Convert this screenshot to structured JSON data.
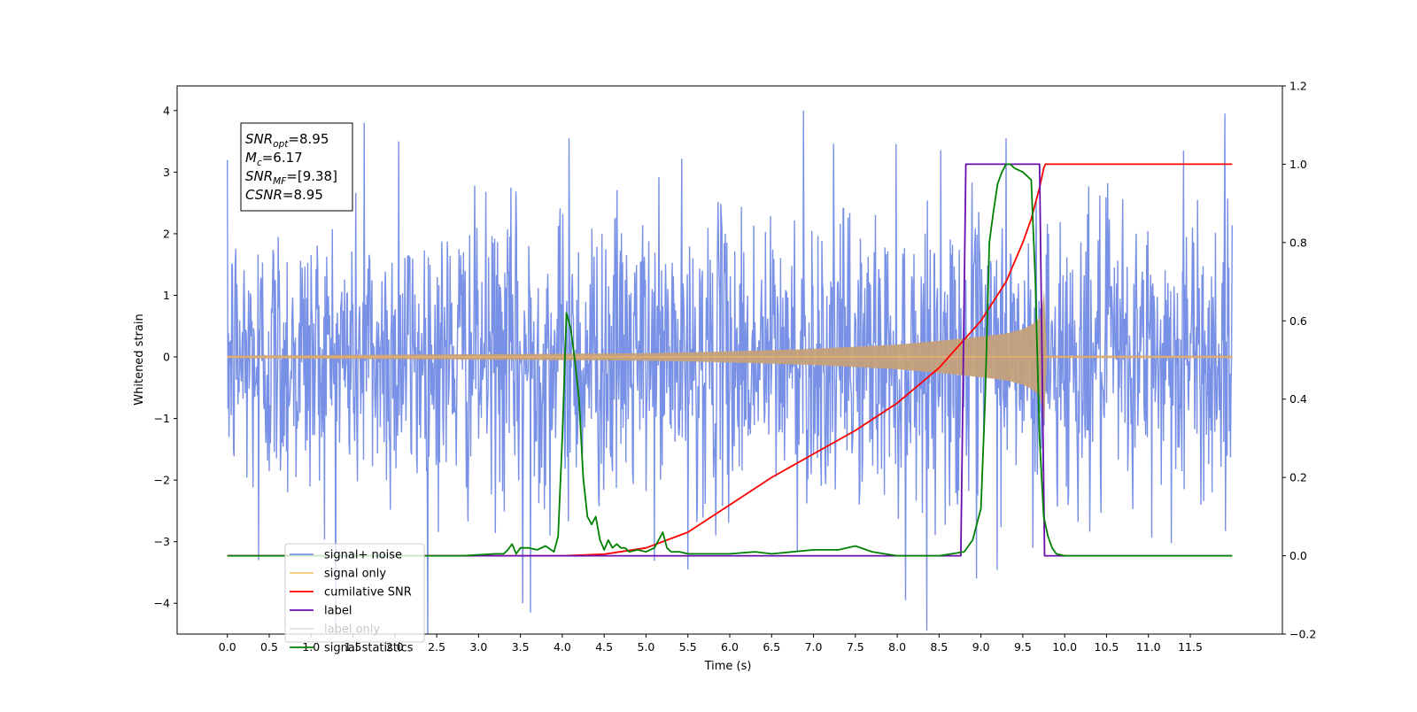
{
  "chart_data": {
    "type": "line",
    "title": "",
    "xlabel": "Time (s)",
    "ylabel": "Whitened strain",
    "y2label": "",
    "xlim": [
      -0.6,
      12.6
    ],
    "ylim": [
      -4.5,
      4.4
    ],
    "y2lim": [
      -0.2,
      1.2
    ],
    "x_ticks": [
      0.0,
      0.5,
      1.0,
      1.5,
      2.0,
      2.5,
      3.0,
      3.5,
      4.0,
      4.5,
      5.0,
      5.5,
      6.0,
      6.5,
      7.0,
      7.5,
      8.0,
      8.5,
      9.0,
      9.5,
      10.0,
      10.5,
      11.0,
      11.5
    ],
    "x_tick_labels": [
      "0.0",
      "0.5",
      "1.0",
      "1.5",
      "2.0",
      "2.5",
      "3.0",
      "3.5",
      "4.0",
      "4.5",
      "5.0",
      "5.5",
      "6.0",
      "6.5",
      "7.0",
      "7.5",
      "8.0",
      "8.5",
      "9.0",
      "9.5",
      "10.0",
      "10.5",
      "11.0",
      "11.5"
    ],
    "y_ticks": [
      -4,
      -3,
      -2,
      -1,
      0,
      1,
      2,
      3,
      4
    ],
    "y_tick_labels": [
      "−4",
      "−3",
      "−2",
      "−1",
      "0",
      "1",
      "2",
      "3",
      "4"
    ],
    "y2_ticks": [
      -0.2,
      0.0,
      0.2,
      0.4,
      0.6,
      0.8,
      1.0,
      1.2
    ],
    "y2_tick_labels": [
      "−0.2",
      "0.0",
      "0.2",
      "0.4",
      "0.6",
      "0.8",
      "1.0",
      "1.2"
    ],
    "grid": false,
    "legend_placement": "lower-left",
    "annotation": {
      "lines": [
        {
          "sym": "SNR",
          "sub": "opt",
          "val": "=8.95"
        },
        {
          "sym": "M",
          "sub": "c",
          "val": "=6.17"
        },
        {
          "sym": "SNR",
          "sub": "MF",
          "val": "=[9.38]"
        },
        {
          "sym": "CSNR",
          "sub": "",
          "val": "=8.95"
        }
      ]
    },
    "series": [
      {
        "name": "signal+ noise",
        "axis": "left",
        "color": "#7890e6",
        "kind": "noise",
        "t_range": [
          0.0,
          12.0
        ],
        "typical_amplitude": 1.6,
        "peak_values": [
          [
            0.37,
            -3.3
          ],
          [
            1.63,
            3.8
          ],
          [
            2.05,
            3.5
          ],
          [
            3.53,
            -4.0
          ],
          [
            3.62,
            -4.15
          ],
          [
            4.08,
            3.55
          ],
          [
            5.5,
            -3.45
          ],
          [
            6.88,
            4.0
          ],
          [
            8.1,
            -3.95
          ],
          [
            8.95,
            -3.6
          ],
          [
            9.3,
            3.55
          ],
          [
            9.62,
            -3.1
          ],
          [
            11.42,
            3.35
          ]
        ]
      },
      {
        "name": "signal only",
        "axis": "left",
        "color": "#f5c87a",
        "kind": "chirp",
        "envelope": [
          [
            0.0,
            0.02
          ],
          [
            5.0,
            0.06
          ],
          [
            6.0,
            0.09
          ],
          [
            7.0,
            0.13
          ],
          [
            8.0,
            0.2
          ],
          [
            8.5,
            0.26
          ],
          [
            9.0,
            0.33
          ],
          [
            9.3,
            0.38
          ],
          [
            9.5,
            0.45
          ],
          [
            9.6,
            0.52
          ],
          [
            9.7,
            0.62
          ],
          [
            9.74,
            0.9
          ],
          [
            9.76,
            1.15
          ],
          [
            9.78,
            0.02
          ],
          [
            12.0,
            0.02
          ]
        ]
      },
      {
        "name": "cumilative SNR",
        "axis": "right",
        "color": "#ff0000",
        "x": [
          0.0,
          4.0,
          4.5,
          5.0,
          5.5,
          6.0,
          6.5,
          7.0,
          7.5,
          8.0,
          8.5,
          9.0,
          9.3,
          9.5,
          9.6,
          9.7,
          9.75,
          9.77,
          12.0
        ],
        "y": [
          0.0,
          0.0,
          0.004,
          0.02,
          0.06,
          0.13,
          0.2,
          0.26,
          0.32,
          0.39,
          0.48,
          0.6,
          0.7,
          0.8,
          0.86,
          0.94,
          0.99,
          1.0,
          1.0
        ]
      },
      {
        "name": "label",
        "axis": "right",
        "color": "#6a0dad",
        "x": [
          0.0,
          8.76,
          8.82,
          9.7,
          9.76,
          12.0
        ],
        "y": [
          0.0,
          0.0,
          1.0,
          1.0,
          0.0,
          0.0
        ]
      },
      {
        "name": "label only",
        "axis": "right",
        "color": "#e0e0e0",
        "x": [],
        "y": []
      },
      {
        "name": "signal statistics",
        "axis": "right",
        "color": "#008000",
        "x": [
          0.0,
          2.8,
          3.2,
          3.3,
          3.35,
          3.4,
          3.45,
          3.5,
          3.55,
          3.6,
          3.7,
          3.8,
          3.9,
          3.95,
          4.0,
          4.05,
          4.1,
          4.15,
          4.2,
          4.25,
          4.3,
          4.35,
          4.4,
          4.45,
          4.5,
          4.55,
          4.6,
          4.65,
          4.7,
          4.75,
          4.8,
          4.9,
          5.0,
          5.1,
          5.15,
          5.2,
          5.25,
          5.3,
          5.4,
          5.5,
          6.0,
          6.3,
          6.5,
          7.0,
          7.3,
          7.5,
          7.7,
          8.0,
          8.5,
          8.8,
          8.9,
          9.0,
          9.05,
          9.1,
          9.15,
          9.2,
          9.25,
          9.3,
          9.35,
          9.4,
          9.5,
          9.6,
          9.65,
          9.7,
          9.75,
          9.8,
          9.85,
          9.9,
          10.0,
          12.0
        ],
        "y": [
          0.0,
          0.0,
          0.005,
          0.005,
          0.015,
          0.03,
          0.005,
          0.02,
          0.02,
          0.02,
          0.015,
          0.025,
          0.01,
          0.05,
          0.3,
          0.62,
          0.58,
          0.5,
          0.4,
          0.2,
          0.1,
          0.08,
          0.1,
          0.04,
          0.015,
          0.04,
          0.02,
          0.03,
          0.02,
          0.02,
          0.01,
          0.015,
          0.01,
          0.02,
          0.04,
          0.06,
          0.02,
          0.01,
          0.01,
          0.005,
          0.005,
          0.01,
          0.005,
          0.015,
          0.015,
          0.025,
          0.01,
          0.0,
          0.0,
          0.01,
          0.04,
          0.12,
          0.4,
          0.8,
          0.88,
          0.95,
          0.98,
          1.0,
          1.0,
          0.99,
          0.98,
          0.96,
          0.7,
          0.3,
          0.1,
          0.05,
          0.02,
          0.005,
          0.0,
          0.0
        ]
      }
    ]
  }
}
